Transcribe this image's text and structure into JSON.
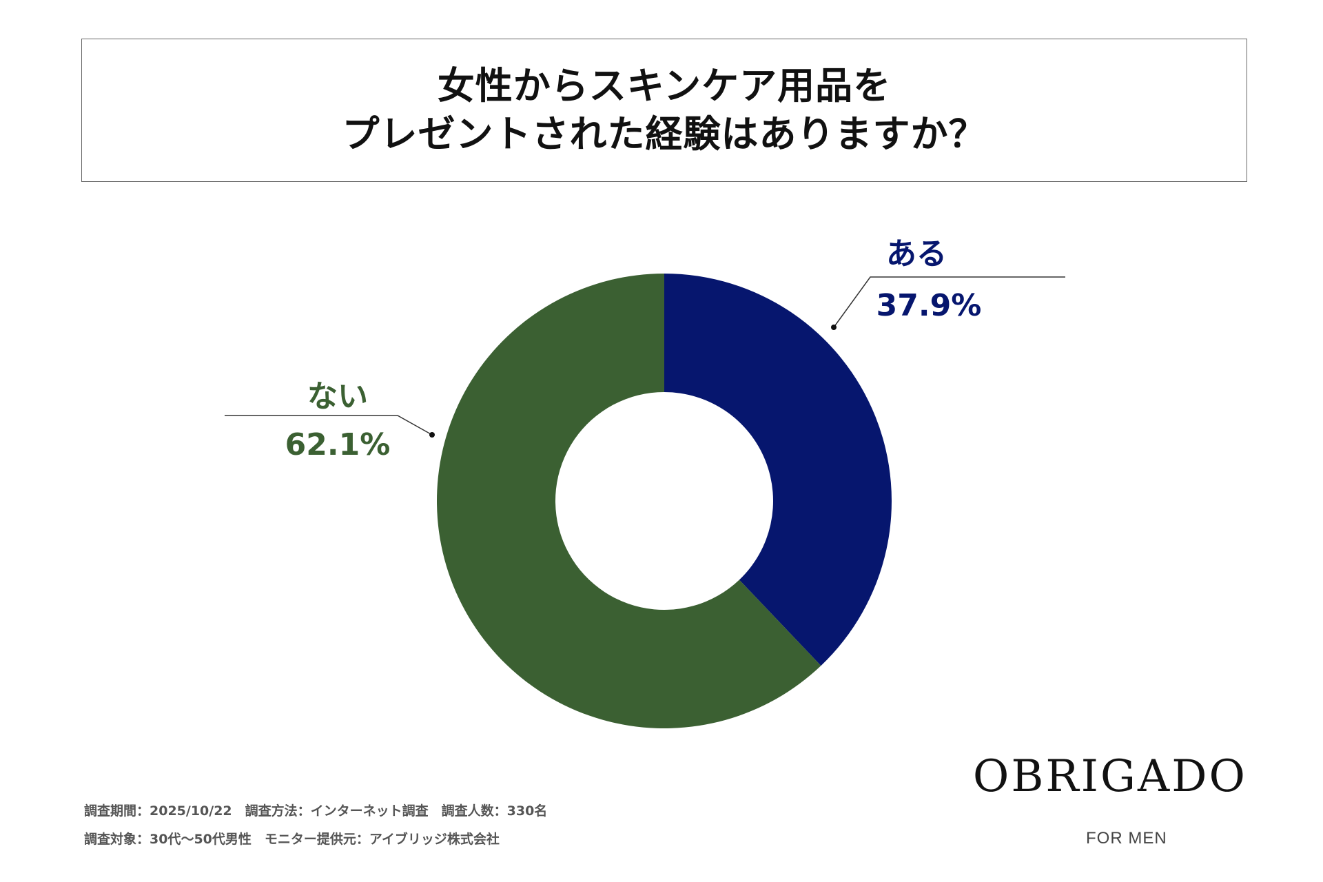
{
  "chart_data": {
    "type": "pie",
    "variant": "donut",
    "title": [
      "女性からスキンケア用品を",
      "プレゼントされた経験はありますか？"
    ],
    "categories": [
      "ある",
      "ない"
    ],
    "values": [
      37.9,
      62.1
    ],
    "labels": [
      "37.9%",
      "62.1%"
    ],
    "colors": [
      "#06166E",
      "#3B6032"
    ],
    "start": "top, clockwise"
  },
  "footer": {
    "line1": "調査期間：2025/10/22　調査方法：インターネット調査　調査人数：330名",
    "line2": "調査対象：30代〜50代男性　モニター提供元：アイブリッジ株式会社"
  },
  "brand": {
    "name": "OBRIGADO",
    "sub": "FOR MEN"
  }
}
